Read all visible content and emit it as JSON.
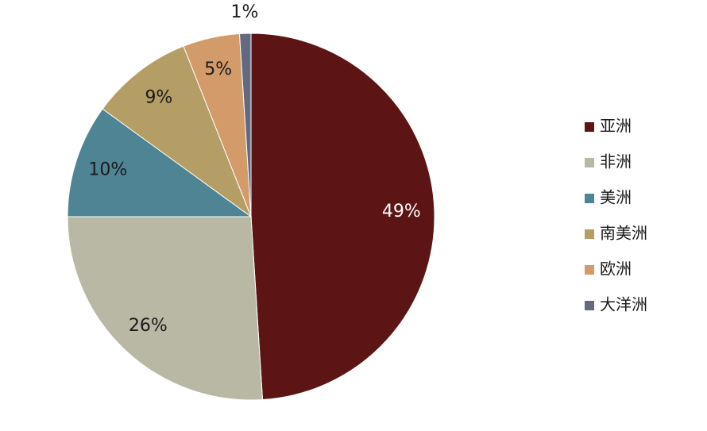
{
  "chart_data": {
    "type": "pie",
    "categories": [
      "亚洲",
      "非洲",
      "美洲",
      "南美洲",
      "欧洲",
      "大洋洲"
    ],
    "values": [
      49,
      26,
      10,
      9,
      5,
      1
    ],
    "value_labels": [
      "49%",
      "26%",
      "10%",
      "9%",
      "5%",
      "1%"
    ],
    "colors": [
      "#5c1414",
      "#b8b8a5",
      "#4f8494",
      "#b59d66",
      "#d39a6a",
      "#636a80"
    ],
    "legend": "right"
  }
}
